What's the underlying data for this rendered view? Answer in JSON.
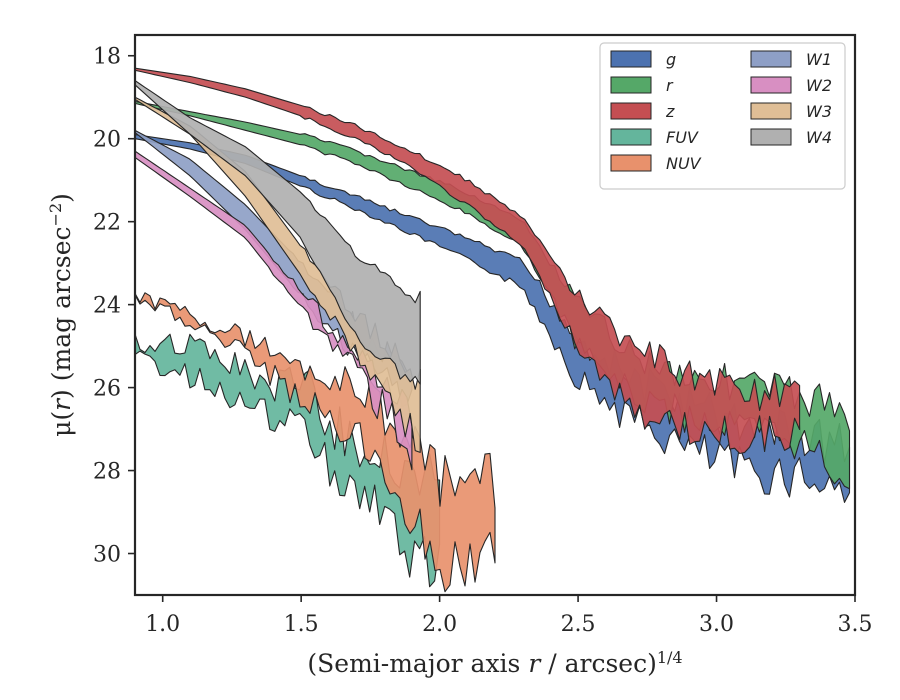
{
  "chart_data": {
    "type": "area",
    "title": "",
    "xlabel": "(Semi-major axis r / arcsec)",
    "xlabel_parts": {
      "pre": "(Semi-major axis ",
      "var": "r",
      "post": " / arcsec)",
      "sup": "1/4"
    },
    "ylabel": "μ(r) (mag arcsec−2)",
    "ylabel_parts": {
      "pre": "μ(",
      "var": "r",
      "post": ") (mag arcsec",
      "sup": "−2",
      "close": ")"
    },
    "xlim": [
      0.9,
      3.5
    ],
    "ylim": [
      31.0,
      17.5
    ],
    "y_inverted": true,
    "xticks": [
      1.0,
      1.5,
      2.0,
      2.5,
      3.0,
      3.5
    ],
    "xtick_labels": [
      "1.0",
      "1.5",
      "2.0",
      "2.5",
      "3.0",
      "3.5"
    ],
    "yticks": [
      18,
      20,
      22,
      24,
      26,
      28,
      30
    ],
    "ytick_labels": [
      "18",
      "20",
      "22",
      "24",
      "26",
      "28",
      "30"
    ],
    "grid": false,
    "legend": {
      "placement": "top-right",
      "columns": 2
    },
    "series": [
      {
        "name": "g",
        "color": "#4c72b0",
        "x": [
          0.9,
          1.1,
          1.3,
          1.5,
          1.7,
          1.9,
          2.1,
          2.3,
          2.5,
          2.7,
          2.9,
          3.1,
          3.3,
          3.48
        ],
        "low": [
          19.9,
          20.1,
          20.4,
          20.9,
          21.4,
          21.9,
          22.4,
          23.0,
          24.8,
          25.8,
          26.4,
          26.9,
          27.1,
          27.4
        ],
        "high": [
          20.0,
          20.25,
          20.6,
          21.15,
          21.7,
          22.3,
          22.9,
          23.6,
          25.8,
          26.8,
          27.5,
          28.0,
          28.1,
          28.5
        ]
      },
      {
        "name": "r",
        "color": "#55a868",
        "x": [
          0.9,
          1.1,
          1.3,
          1.5,
          1.7,
          1.9,
          2.1,
          2.3,
          2.5,
          2.7,
          2.9,
          3.1,
          3.3,
          3.48
        ],
        "low": [
          19.1,
          19.35,
          19.6,
          19.9,
          20.3,
          20.8,
          21.3,
          22.0,
          24.0,
          25.2,
          25.7,
          25.9,
          26.2,
          26.6
        ],
        "high": [
          19.15,
          19.45,
          19.8,
          20.15,
          20.6,
          21.2,
          21.8,
          22.6,
          25.0,
          26.2,
          26.7,
          27.0,
          27.3,
          28.2
        ]
      },
      {
        "name": "z",
        "color": "#c44e52",
        "x": [
          0.9,
          1.1,
          1.3,
          1.5,
          1.7,
          1.9,
          2.1,
          2.3,
          2.5,
          2.7,
          2.9,
          3.1,
          3.3
        ],
        "low": [
          18.3,
          18.5,
          18.8,
          19.2,
          19.7,
          20.3,
          21.0,
          21.9,
          23.8,
          25.0,
          25.7,
          26.0,
          26.3
        ],
        "high": [
          18.35,
          18.65,
          19.0,
          19.45,
          20.0,
          20.7,
          21.6,
          22.6,
          25.0,
          26.6,
          27.0,
          27.2,
          27.0
        ]
      },
      {
        "name": "FUV",
        "color": "#64b59c",
        "x": [
          0.9,
          1.0,
          1.2,
          1.4,
          1.5,
          1.6,
          1.7,
          1.8,
          1.9,
          2.0
        ],
        "low": [
          25.0,
          24.8,
          25.2,
          26.0,
          25.7,
          26.8,
          27.4,
          27.6,
          28.0,
          28.1
        ],
        "high": [
          25.3,
          25.5,
          26.0,
          26.8,
          26.9,
          27.9,
          28.6,
          29.0,
          30.2,
          30.4
        ]
      },
      {
        "name": "NUV",
        "color": "#e8916c",
        "x": [
          0.9,
          1.1,
          1.3,
          1.5,
          1.7,
          1.9,
          2.0,
          2.1,
          2.2
        ],
        "low": [
          23.8,
          24.2,
          24.8,
          25.4,
          26.0,
          27.2,
          28.3,
          28.6,
          28.2
        ],
        "high": [
          23.85,
          24.4,
          25.2,
          26.3,
          27.2,
          29.0,
          30.5,
          30.1,
          30.2
        ]
      },
      {
        "name": "W1",
        "color": "#8e9fc6",
        "x": [
          0.9,
          1.1,
          1.3,
          1.5,
          1.7,
          1.9
        ],
        "low": [
          19.8,
          20.5,
          21.6,
          23.0,
          24.5,
          25.8
        ],
        "high": [
          19.85,
          20.9,
          22.2,
          23.8,
          25.3,
          26.3
        ]
      },
      {
        "name": "W2",
        "color": "#d88fc2",
        "x": [
          0.9,
          1.1,
          1.3,
          1.5,
          1.7,
          1.9
        ],
        "low": [
          20.3,
          21.2,
          22.1,
          23.7,
          25.2,
          26.8
        ],
        "high": [
          20.45,
          21.4,
          22.4,
          24.1,
          25.6,
          27.5
        ]
      },
      {
        "name": "W3",
        "color": "#dfbe96",
        "x": [
          0.9,
          1.1,
          1.3,
          1.5,
          1.7,
          1.93
        ],
        "low": [
          19.0,
          19.7,
          20.8,
          22.6,
          24.3,
          25.8
        ],
        "high": [
          19.05,
          19.9,
          21.4,
          23.3,
          25.2,
          27.3
        ]
      },
      {
        "name": "W4",
        "color": "#b0b0b0",
        "x": [
          0.9,
          1.1,
          1.3,
          1.5,
          1.7,
          1.93
        ],
        "low": [
          18.6,
          19.5,
          20.2,
          21.3,
          22.8,
          23.9
        ],
        "high": [
          18.7,
          19.9,
          20.9,
          22.4,
          24.8,
          26.0
        ]
      }
    ]
  }
}
